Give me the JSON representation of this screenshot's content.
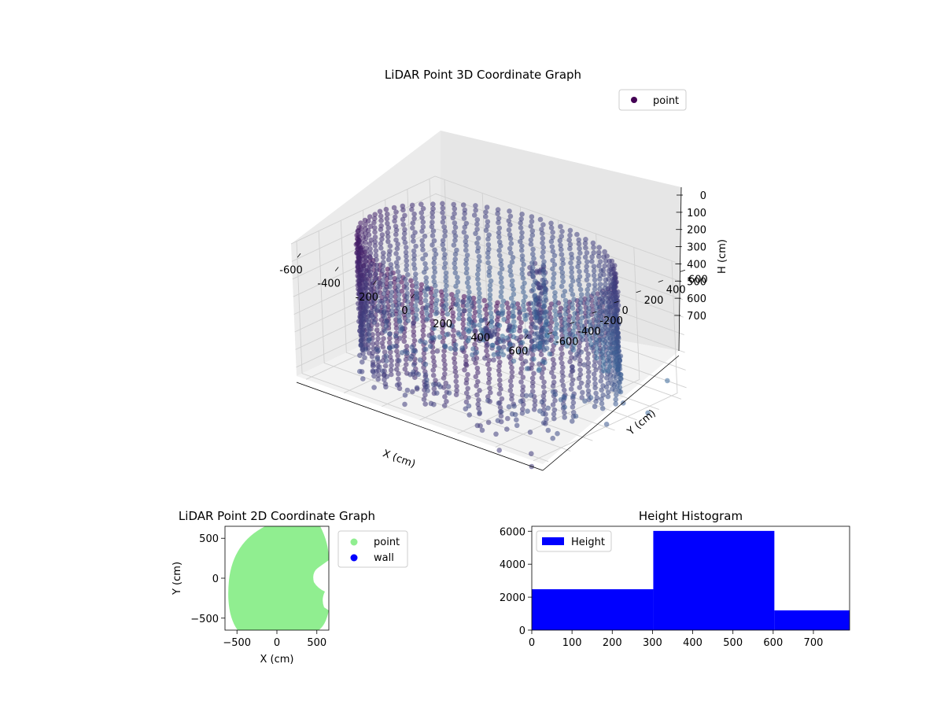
{
  "chart_data": [
    {
      "type": "scatter",
      "projection": "3d",
      "title": "LiDAR Point 3D Coordinate Graph",
      "xlabel": "X (cm)",
      "ylabel": "Y (cm)",
      "zlabel": "H (cm)",
      "x_ticks": [
        -600,
        -400,
        -200,
        0,
        200,
        400,
        600
      ],
      "y_ticks": [
        -600,
        -400,
        -200,
        0,
        200,
        400,
        600
      ],
      "z_ticks": [
        0,
        100,
        200,
        300,
        400,
        500,
        600,
        700
      ],
      "xlim": [
        -650,
        650
      ],
      "ylim": [
        -650,
        650
      ],
      "zlim": [
        0,
        750
      ],
      "z_inverted": true,
      "grid": true,
      "legend": {
        "position": "top-right",
        "entries": [
          "point"
        ]
      },
      "colormap": {
        "low": "#440154",
        "high": "#3b6f9e"
      },
      "series": [
        {
          "name": "point",
          "description_values": "cylindrical wall of points, radius about 600 cm, height 0-750 cm; central pillar near x=100,y=200; scattered floor points",
          "color": "#440154"
        }
      ]
    },
    {
      "type": "scatter",
      "title": "LiDAR Point 2D Coordinate Graph",
      "xlabel": "X (cm)",
      "ylabel": "Y (cm)",
      "x_ticks": [
        -500,
        0,
        500
      ],
      "y_ticks": [
        -500,
        0,
        500
      ],
      "xlim": [
        -650,
        650
      ],
      "ylim": [
        -650,
        650
      ],
      "legend": {
        "position": "outside-right",
        "entries": [
          "point",
          "wall"
        ]
      },
      "series": [
        {
          "name": "point",
          "color": "#90ee90"
        },
        {
          "name": "wall",
          "color": "#0000ff"
        }
      ]
    },
    {
      "type": "bar",
      "title": "Height Histogram",
      "x_ticks": [
        0,
        100,
        200,
        300,
        400,
        500,
        600,
        700
      ],
      "y_ticks": [
        0,
        2000,
        4000,
        6000
      ],
      "xlim": [
        0,
        790
      ],
      "ylim": [
        0,
        6300
      ],
      "legend": {
        "position": "top-left",
        "entries": [
          "Height"
        ]
      },
      "bins": [
        {
          "x0": 0,
          "x1": 302,
          "value": 2480
        },
        {
          "x0": 302,
          "x1": 603,
          "value": 6020
        },
        {
          "x0": 603,
          "x1": 790,
          "value": 1200
        }
      ],
      "color": "#0000ff"
    }
  ]
}
